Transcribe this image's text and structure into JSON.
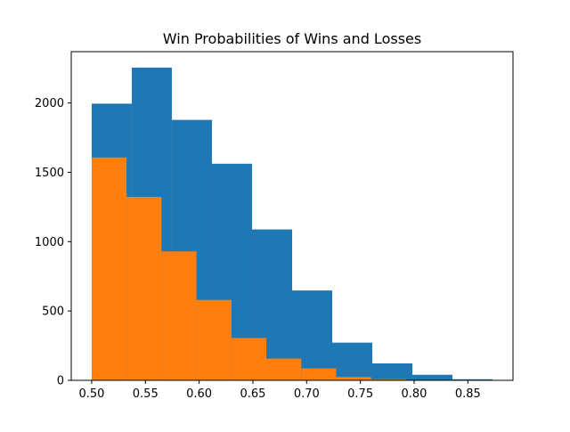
{
  "chart_data": {
    "type": "bar",
    "title": "Win Probabilities of Wins and Losses",
    "xlabel": "",
    "ylabel": "",
    "xlim": [
      0.481,
      0.892
    ],
    "ylim": [
      0,
      2370
    ],
    "xticks": [
      0.5,
      0.55,
      0.6,
      0.65,
      0.7,
      0.75,
      0.8,
      0.85
    ],
    "xtick_labels": [
      "0.50",
      "0.55",
      "0.60",
      "0.65",
      "0.70",
      "0.75",
      "0.80",
      "0.85"
    ],
    "yticks": [
      0,
      500,
      1000,
      1500,
      2000
    ],
    "ytick_labels": [
      "0",
      "500",
      "1000",
      "1500",
      "2000"
    ],
    "grid": false,
    "series": [
      {
        "color": "#1f77b4",
        "bins": [
          {
            "x0": 0.5,
            "x1": 0.5373,
            "value": 1995
          },
          {
            "x0": 0.5373,
            "x1": 0.5746,
            "value": 2255
          },
          {
            "x0": 0.5746,
            "x1": 0.6119,
            "value": 1878
          },
          {
            "x0": 0.6119,
            "x1": 0.6492,
            "value": 1562
          },
          {
            "x0": 0.6492,
            "x1": 0.6865,
            "value": 1088
          },
          {
            "x0": 0.6865,
            "x1": 0.7238,
            "value": 648
          },
          {
            "x0": 0.7238,
            "x1": 0.7611,
            "value": 272
          },
          {
            "x0": 0.7611,
            "x1": 0.7984,
            "value": 122
          },
          {
            "x0": 0.7984,
            "x1": 0.8357,
            "value": 40
          },
          {
            "x0": 0.8357,
            "x1": 0.873,
            "value": 8
          }
        ]
      },
      {
        "color": "#ff7f0e",
        "bins": [
          {
            "x0": 0.5,
            "x1": 0.5325,
            "value": 1607
          },
          {
            "x0": 0.5325,
            "x1": 0.565,
            "value": 1323
          },
          {
            "x0": 0.565,
            "x1": 0.5975,
            "value": 930
          },
          {
            "x0": 0.5975,
            "x1": 0.63,
            "value": 580
          },
          {
            "x0": 0.63,
            "x1": 0.6625,
            "value": 305
          },
          {
            "x0": 0.6625,
            "x1": 0.695,
            "value": 157
          },
          {
            "x0": 0.695,
            "x1": 0.7275,
            "value": 86
          },
          {
            "x0": 0.7275,
            "x1": 0.76,
            "value": 24
          },
          {
            "x0": 0.76,
            "x1": 0.7925,
            "value": 8
          },
          {
            "x0": 0.7925,
            "x1": 0.825,
            "value": 2
          }
        ]
      }
    ]
  }
}
